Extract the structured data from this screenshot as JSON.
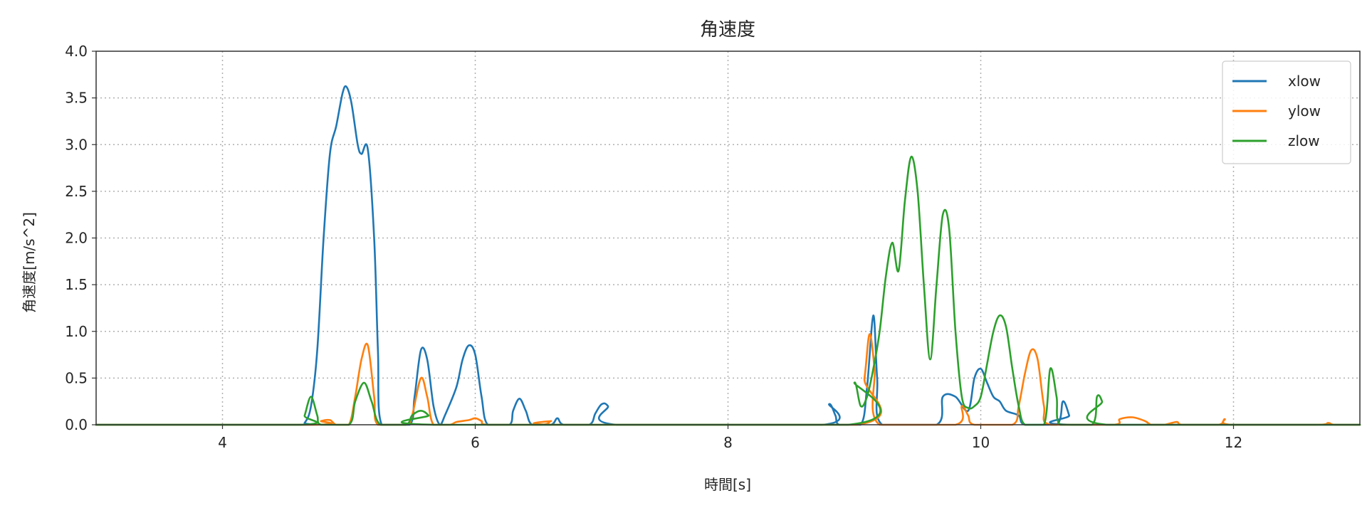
{
  "chart_data": {
    "type": "line",
    "title": "角速度",
    "xlabel": "時間[s]",
    "ylabel": "角速度[m/s^2]",
    "xlim": [
      3,
      13
    ],
    "ylim": [
      0,
      4.0
    ],
    "x_ticks": [
      4,
      6,
      8,
      10,
      12
    ],
    "x_tick_labels": [
      "4",
      "6",
      "8",
      "10",
      "12"
    ],
    "y_ticks": [
      0,
      0.5,
      1.0,
      1.5,
      2.0,
      2.5,
      3.0,
      3.5,
      4.0
    ],
    "y_tick_labels": [
      "0.0",
      "0.5",
      "1.0",
      "1.5",
      "2.0",
      "2.5",
      "3.0",
      "3.5",
      "4.0"
    ],
    "grid": true,
    "legend_position": "top-right",
    "series": [
      {
        "name": "xlow",
        "color": "#1f77b4",
        "points": [
          [
            3.0,
            0
          ],
          [
            4.6,
            0
          ],
          [
            4.65,
            0.02
          ],
          [
            4.7,
            0.2
          ],
          [
            4.75,
            0.8
          ],
          [
            4.8,
            2.0
          ],
          [
            4.85,
            2.9
          ],
          [
            4.9,
            3.2
          ],
          [
            4.95,
            3.55
          ],
          [
            4.98,
            3.62
          ],
          [
            5.02,
            3.45
          ],
          [
            5.07,
            3.0
          ],
          [
            5.1,
            2.9
          ],
          [
            5.15,
            2.95
          ],
          [
            5.2,
            2.0
          ],
          [
            5.23,
            0.8
          ],
          [
            5.26,
            0
          ],
          [
            5.48,
            0
          ],
          [
            5.52,
            0.3
          ],
          [
            5.57,
            0.8
          ],
          [
            5.62,
            0.7
          ],
          [
            5.67,
            0.2
          ],
          [
            5.72,
            0
          ],
          [
            5.76,
            0.1
          ],
          [
            5.85,
            0.4
          ],
          [
            5.9,
            0.7
          ],
          [
            5.95,
            0.85
          ],
          [
            6.0,
            0.75
          ],
          [
            6.05,
            0.3
          ],
          [
            6.1,
            0
          ],
          [
            6.27,
            0
          ],
          [
            6.3,
            0.15
          ],
          [
            6.35,
            0.28
          ],
          [
            6.4,
            0.15
          ],
          [
            6.45,
            0
          ],
          [
            6.6,
            0
          ],
          [
            6.65,
            0.07
          ],
          [
            6.7,
            0
          ],
          [
            6.9,
            0
          ],
          [
            6.95,
            0.12
          ],
          [
            7.0,
            0.22
          ],
          [
            7.05,
            0.2
          ],
          [
            7.12,
            0
          ],
          [
            8.75,
            0
          ],
          [
            8.8,
            0.22
          ],
          [
            8.85,
            0.1
          ],
          [
            8.88,
            0
          ],
          [
            9.05,
            0
          ],
          [
            9.1,
            0.4
          ],
          [
            9.15,
            1.17
          ],
          [
            9.18,
            0.5
          ],
          [
            9.22,
            0
          ],
          [
            9.65,
            0
          ],
          [
            9.7,
            0.3
          ],
          [
            9.8,
            0.3
          ],
          [
            9.9,
            0.15
          ],
          [
            9.95,
            0.5
          ],
          [
            10.0,
            0.6
          ],
          [
            10.05,
            0.45
          ],
          [
            10.1,
            0.3
          ],
          [
            10.15,
            0.25
          ],
          [
            10.2,
            0.15
          ],
          [
            10.3,
            0.1
          ],
          [
            10.35,
            0
          ],
          [
            10.6,
            0
          ],
          [
            10.65,
            0.25
          ],
          [
            10.7,
            0.1
          ],
          [
            10.72,
            0
          ],
          [
            13.0,
            0
          ]
        ]
      },
      {
        "name": "ylow",
        "color": "#ff7f0e",
        "points": [
          [
            3.0,
            0
          ],
          [
            4.72,
            0
          ],
          [
            4.78,
            0.04
          ],
          [
            4.85,
            0.05
          ],
          [
            4.9,
            0
          ],
          [
            5.0,
            0
          ],
          [
            5.05,
            0.3
          ],
          [
            5.1,
            0.7
          ],
          [
            5.15,
            0.85
          ],
          [
            5.2,
            0.3
          ],
          [
            5.23,
            0
          ],
          [
            5.45,
            0
          ],
          [
            5.5,
            0.1
          ],
          [
            5.57,
            0.5
          ],
          [
            5.62,
            0.3
          ],
          [
            5.67,
            0
          ],
          [
            5.8,
            0
          ],
          [
            5.85,
            0.03
          ],
          [
            5.95,
            0.05
          ],
          [
            6.0,
            0.07
          ],
          [
            6.05,
            0.04
          ],
          [
            6.1,
            0
          ],
          [
            6.52,
            0
          ],
          [
            6.6,
            0.04
          ],
          [
            6.65,
            0
          ],
          [
            9.02,
            0
          ],
          [
            9.08,
            0.5
          ],
          [
            9.12,
            0.97
          ],
          [
            9.16,
            0.6
          ],
          [
            9.2,
            0
          ],
          [
            9.8,
            0
          ],
          [
            9.85,
            0.2
          ],
          [
            9.9,
            0.1
          ],
          [
            9.95,
            0
          ],
          [
            10.25,
            0
          ],
          [
            10.3,
            0.2
          ],
          [
            10.35,
            0.55
          ],
          [
            10.4,
            0.8
          ],
          [
            10.45,
            0.7
          ],
          [
            10.5,
            0.2
          ],
          [
            10.55,
            0
          ],
          [
            11.05,
            0
          ],
          [
            11.1,
            0.06
          ],
          [
            11.2,
            0.08
          ],
          [
            11.3,
            0.04
          ],
          [
            11.35,
            0
          ],
          [
            11.45,
            0
          ],
          [
            11.55,
            0.03
          ],
          [
            11.6,
            0
          ],
          [
            11.88,
            0
          ],
          [
            11.93,
            0.06
          ],
          [
            11.98,
            0
          ],
          [
            12.65,
            0
          ],
          [
            12.75,
            0.02
          ],
          [
            12.8,
            0
          ],
          [
            13.0,
            0
          ]
        ]
      },
      {
        "name": "zlow",
        "color": "#2ca02c",
        "points": [
          [
            3.0,
            0
          ],
          [
            4.62,
            0
          ],
          [
            4.65,
            0.1
          ],
          [
            4.7,
            0.3
          ],
          [
            4.75,
            0.1
          ],
          [
            4.78,
            0
          ],
          [
            5.0,
            0
          ],
          [
            5.05,
            0.25
          ],
          [
            5.12,
            0.45
          ],
          [
            5.18,
            0.25
          ],
          [
            5.25,
            0
          ],
          [
            5.45,
            0
          ],
          [
            5.5,
            0.1
          ],
          [
            5.57,
            0.15
          ],
          [
            5.63,
            0.1
          ],
          [
            5.67,
            0
          ],
          [
            8.95,
            0
          ],
          [
            9.0,
            0.45
          ],
          [
            9.05,
            0.2
          ],
          [
            9.1,
            0.3
          ],
          [
            9.15,
            0.6
          ],
          [
            9.2,
            1.0
          ],
          [
            9.25,
            1.6
          ],
          [
            9.3,
            1.95
          ],
          [
            9.35,
            1.65
          ],
          [
            9.4,
            2.4
          ],
          [
            9.45,
            2.87
          ],
          [
            9.5,
            2.5
          ],
          [
            9.55,
            1.5
          ],
          [
            9.6,
            0.7
          ],
          [
            9.65,
            1.5
          ],
          [
            9.7,
            2.25
          ],
          [
            9.75,
            2.1
          ],
          [
            9.8,
            1.0
          ],
          [
            9.85,
            0.3
          ],
          [
            9.9,
            0.18
          ],
          [
            9.95,
            0.2
          ],
          [
            10.0,
            0.3
          ],
          [
            10.05,
            0.65
          ],
          [
            10.1,
            1.0
          ],
          [
            10.15,
            1.17
          ],
          [
            10.2,
            1.05
          ],
          [
            10.25,
            0.6
          ],
          [
            10.3,
            0.2
          ],
          [
            10.35,
            0
          ],
          [
            10.5,
            0
          ],
          [
            10.55,
            0.6
          ],
          [
            10.6,
            0.3
          ],
          [
            10.63,
            0
          ],
          [
            10.88,
            0
          ],
          [
            10.92,
            0.3
          ],
          [
            10.96,
            0.25
          ],
          [
            11.0,
            0
          ],
          [
            13.0,
            0
          ]
        ]
      }
    ]
  }
}
